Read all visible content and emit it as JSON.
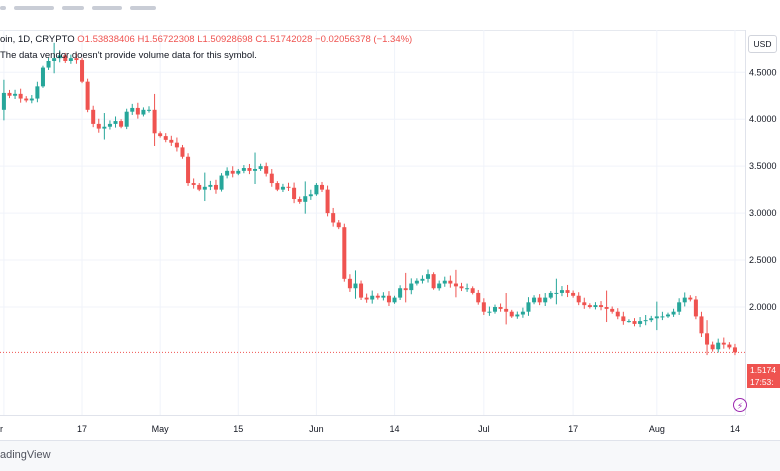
{
  "legend": {
    "symbol": "oin, 1D, CRYPTO",
    "open": "O1.53838406",
    "high": "H1.56722308",
    "low": "L1.50928698",
    "close": "C1.51742028",
    "change": "−0.02056378 (−1.34%)"
  },
  "note": "The data vendor doesn't provide volume data for this symbol.",
  "currency_button": "USD",
  "last_price": {
    "price": "1.5174",
    "countdown": "17:53:"
  },
  "footer": {
    "brand": "adingView"
  },
  "colors": {
    "up": "#26a69a",
    "down": "#ef5350",
    "grid": "#f0f3fa",
    "text": "#131722"
  },
  "chart_data": {
    "type": "candlestick",
    "title": "",
    "y_ticks": [
      "4.5000",
      "4.0000",
      "3.5000",
      "3.0000",
      "2.5000",
      "2.0000"
    ],
    "y_tick_values": [
      4.5,
      4.0,
      3.5,
      3.0,
      2.5,
      2.0
    ],
    "ylim": [
      0.85,
      4.95
    ],
    "x_ticks": [
      "r",
      "17",
      "May",
      "15",
      "Jun",
      "14",
      "Jul",
      "17",
      "Aug",
      "14"
    ],
    "x_tick_index": [
      0,
      14,
      28,
      42,
      56,
      70,
      86,
      102,
      117,
      131
    ],
    "last_close": 1.5174,
    "close": [
      4.28,
      4.25,
      4.27,
      4.22,
      4.2,
      4.22,
      4.35,
      4.55,
      4.62,
      4.65,
      4.68,
      4.62,
      4.65,
      4.63,
      4.4,
      4.1,
      3.95,
      3.9,
      3.92,
      3.95,
      3.98,
      3.92,
      4.08,
      4.12,
      4.05,
      4.1,
      4.1,
      3.85,
      3.82,
      3.78,
      3.75,
      3.7,
      3.6,
      3.32,
      3.3,
      3.25,
      3.28,
      3.3,
      3.25,
      3.4,
      3.45,
      3.42,
      3.45,
      3.48,
      3.45,
      3.47,
      3.5,
      3.42,
      3.32,
      3.25,
      3.28,
      3.27,
      3.15,
      3.12,
      3.18,
      3.2,
      3.3,
      3.25,
      3.0,
      2.9,
      2.85,
      2.3,
      2.2,
      2.25,
      2.1,
      2.08,
      2.12,
      2.1,
      2.12,
      2.05,
      2.1,
      2.2,
      2.18,
      2.25,
      2.28,
      2.3,
      2.35,
      2.2,
      2.25,
      2.28,
      2.25,
      2.22,
      2.2,
      2.2,
      2.15,
      2.05,
      1.95,
      1.95,
      2.0,
      1.98,
      1.95,
      1.9,
      1.92,
      1.95,
      2.05,
      2.1,
      2.05,
      2.1,
      2.15,
      2.15,
      2.18,
      2.15,
      2.12,
      2.05,
      2.02,
      2.0,
      2.02,
      2.0,
      1.98,
      1.95,
      1.9,
      1.85,
      1.85,
      1.82,
      1.85,
      1.86,
      1.88,
      1.9,
      1.9,
      1.92,
      1.95,
      2.05,
      2.1,
      2.08,
      1.9,
      1.72,
      1.6,
      1.55,
      1.62,
      1.6,
      1.57,
      1.5174
    ],
    "open_first": 4.1
  }
}
